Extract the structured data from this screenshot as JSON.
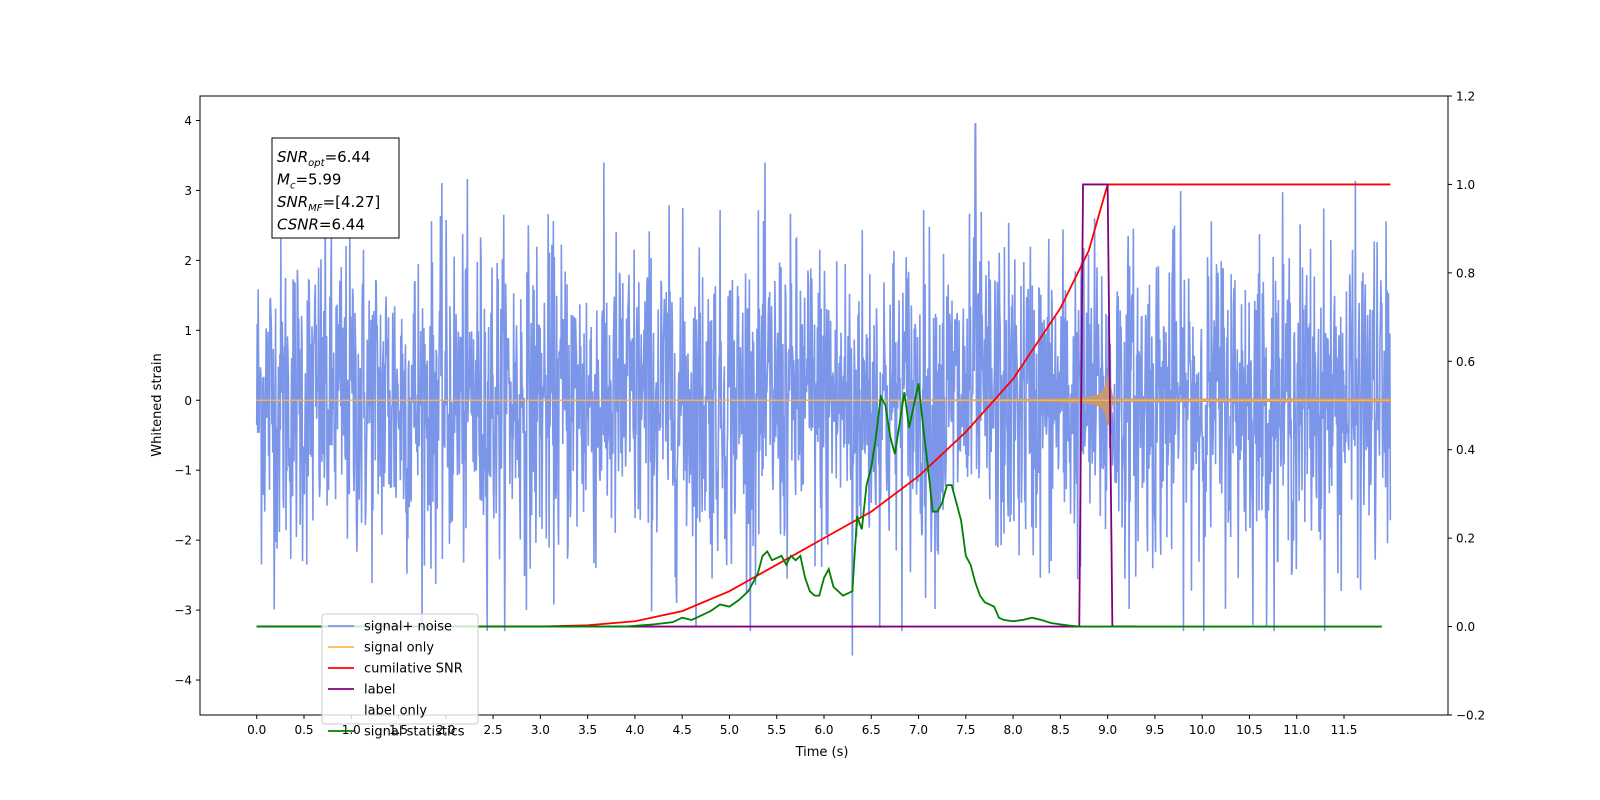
{
  "chart_data": {
    "type": "line",
    "xlabel": "Time (s)",
    "ylabel": "Whitened strain",
    "xlim": [
      -0.6,
      12.6
    ],
    "ylim_left": [
      -4.5,
      4.35
    ],
    "ylim_right": [
      -0.2,
      1.2
    ],
    "x_ticks": [
      0.0,
      0.5,
      1.0,
      1.5,
      2.0,
      2.5,
      3.0,
      3.5,
      4.0,
      4.5,
      5.0,
      5.5,
      6.0,
      6.5,
      7.0,
      7.5,
      8.0,
      8.5,
      9.0,
      9.5,
      10.0,
      10.5,
      11.0,
      11.5
    ],
    "x_tick_labels": [
      "0.0",
      "0.5",
      "1.0",
      "1.5",
      "2.0",
      "2.5",
      "3.0",
      "3.5",
      "4.0",
      "4.5",
      "5.0",
      "5.5",
      "6.0",
      "6.5",
      "7.0",
      "7.5",
      "8.0",
      "8.5",
      "9.0",
      "9.5",
      "10.0",
      "10.5",
      "11.0",
      "11.5"
    ],
    "y_left_ticks": [
      -4,
      -3,
      -2,
      -1,
      0,
      1,
      2,
      3,
      4
    ],
    "y_left_tick_labels": [
      "−4",
      "−3",
      "−2",
      "−1",
      "0",
      "1",
      "2",
      "3",
      "4"
    ],
    "y_right_ticks": [
      -0.2,
      0.0,
      0.2,
      0.4,
      0.6,
      0.8,
      1.0,
      1.2
    ],
    "y_right_tick_labels": [
      "−0.2",
      "0.0",
      "0.2",
      "0.4",
      "0.6",
      "0.8",
      "1.0",
      "1.2"
    ],
    "grid": false,
    "legend_position": "lower-left",
    "annotation": {
      "lines": [
        {
          "base": "SNR",
          "sub": "opt",
          "value": "=6.44"
        },
        {
          "base": "M",
          "sub": "c",
          "value": "=5.99"
        },
        {
          "base": "SNR",
          "sub": "MF",
          "value": "=[4.27]"
        },
        {
          "base": "CSNR",
          "sub": "",
          "value": "=6.44"
        }
      ]
    },
    "series": [
      {
        "name": "signal+ noise",
        "axis": "left",
        "color": "#7b95e8",
        "kind": "noise",
        "x_range": [
          0.0,
          11.99
        ],
        "typical_amplitude": 1.2,
        "max_value": 3.95,
        "min_value": -3.65
      },
      {
        "name": "signal only",
        "axis": "left",
        "color": "#ffb74d",
        "kind": "chirp",
        "x_range": [
          0.0,
          11.99
        ],
        "merger_time": 9.0,
        "peak_amplitude": 0.45
      },
      {
        "name": "cumilative SNR",
        "axis": "right",
        "color": "#ff0000",
        "x": [
          0.0,
          3.0,
          3.5,
          4.0,
          4.5,
          5.0,
          5.5,
          6.0,
          6.5,
          7.0,
          7.5,
          8.0,
          8.5,
          8.8,
          9.0,
          11.99
        ],
        "y": [
          0.0,
          0.0,
          0.003,
          0.012,
          0.035,
          0.08,
          0.14,
          0.2,
          0.26,
          0.34,
          0.44,
          0.56,
          0.72,
          0.85,
          1.0,
          1.0
        ]
      },
      {
        "name": "label",
        "axis": "right",
        "color": "#800080",
        "x": [
          0.0,
          8.7,
          8.74,
          9.0,
          9.05,
          9.3
        ],
        "y": [
          0.0,
          0.0,
          1.0,
          1.0,
          0.0,
          0.0
        ]
      },
      {
        "name": "label only",
        "axis": "right",
        "color": "#ffffff",
        "x": [],
        "y": []
      },
      {
        "name": "signal statistics",
        "axis": "right",
        "color": "#008000",
        "x": [
          0.0,
          3.9,
          4.2,
          4.4,
          4.5,
          4.6,
          4.7,
          4.8,
          4.9,
          5.0,
          5.1,
          5.2,
          5.3,
          5.35,
          5.4,
          5.45,
          5.5,
          5.55,
          5.6,
          5.65,
          5.7,
          5.75,
          5.8,
          5.85,
          5.9,
          5.95,
          6.0,
          6.05,
          6.1,
          6.15,
          6.2,
          6.25,
          6.3,
          6.35,
          6.4,
          6.45,
          6.5,
          6.55,
          6.6,
          6.65,
          6.7,
          6.75,
          6.8,
          6.85,
          6.9,
          6.95,
          7.0,
          7.05,
          7.1,
          7.15,
          7.2,
          7.25,
          7.3,
          7.35,
          7.4,
          7.45,
          7.5,
          7.55,
          7.6,
          7.65,
          7.7,
          7.75,
          7.8,
          7.85,
          7.9,
          8.0,
          8.1,
          8.2,
          8.3,
          8.4,
          8.5,
          8.6,
          8.7,
          8.8,
          8.9,
          9.0,
          9.05,
          9.1,
          9.2,
          9.3,
          9.5,
          11.9
        ],
        "y": [
          0.0,
          0.0,
          0.005,
          0.01,
          0.02,
          0.015,
          0.025,
          0.035,
          0.05,
          0.045,
          0.06,
          0.08,
          0.12,
          0.16,
          0.17,
          0.15,
          0.155,
          0.16,
          0.14,
          0.16,
          0.15,
          0.16,
          0.11,
          0.08,
          0.07,
          0.07,
          0.11,
          0.13,
          0.09,
          0.08,
          0.07,
          0.075,
          0.08,
          0.25,
          0.22,
          0.32,
          0.36,
          0.43,
          0.52,
          0.5,
          0.43,
          0.39,
          0.46,
          0.53,
          0.45,
          0.5,
          0.55,
          0.45,
          0.36,
          0.26,
          0.26,
          0.28,
          0.32,
          0.32,
          0.28,
          0.24,
          0.16,
          0.14,
          0.1,
          0.07,
          0.055,
          0.05,
          0.045,
          0.02,
          0.015,
          0.012,
          0.015,
          0.02,
          0.015,
          0.008,
          0.005,
          0.002,
          0.0,
          0.0,
          0.0,
          0.0,
          0.0,
          0.0,
          0.0,
          0.0,
          0.0,
          0.0
        ]
      }
    ]
  }
}
